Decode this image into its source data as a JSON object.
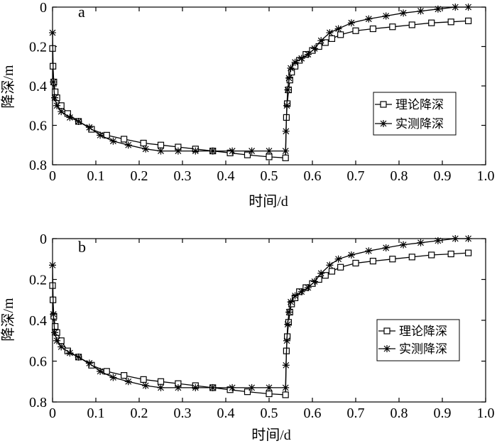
{
  "chart_data": [
    {
      "type": "line",
      "panel_label": "a",
      "xlabel": "时间/d",
      "ylabel": "降深/m",
      "xlim": [
        0,
        1.0
      ],
      "ylim": [
        0,
        0.8
      ],
      "y_inverted": true,
      "x_ticks": [
        "0",
        "0.1",
        "0.2",
        "0.3",
        "0.4",
        "0.5",
        "0.6",
        "0.7",
        "0.8",
        "0.9",
        "1.0"
      ],
      "y_ticks": [
        "0",
        "0.2",
        "0.4",
        "0.6",
        "0.8"
      ],
      "legend_position": "right-center",
      "grid": false,
      "series": [
        {
          "name": "理论降深",
          "marker": "square",
          "x": [
            0.0,
            0.001,
            0.003,
            0.006,
            0.01,
            0.02,
            0.035,
            0.06,
            0.09,
            0.125,
            0.165,
            0.21,
            0.25,
            0.29,
            0.33,
            0.37,
            0.41,
            0.45,
            0.5,
            0.538,
            0.54,
            0.542,
            0.545,
            0.548,
            0.552,
            0.56,
            0.57,
            0.585,
            0.6,
            0.615,
            0.63,
            0.645,
            0.665,
            0.7,
            0.74,
            0.785,
            0.83,
            0.875,
            0.92,
            0.96
          ],
          "y": [
            0.21,
            0.3,
            0.38,
            0.43,
            0.46,
            0.5,
            0.54,
            0.58,
            0.62,
            0.65,
            0.67,
            0.69,
            0.7,
            0.71,
            0.72,
            0.73,
            0.74,
            0.75,
            0.76,
            0.765,
            0.56,
            0.49,
            0.42,
            0.37,
            0.33,
            0.3,
            0.27,
            0.24,
            0.22,
            0.2,
            0.18,
            0.16,
            0.14,
            0.12,
            0.11,
            0.1,
            0.09,
            0.08,
            0.075,
            0.07
          ]
        },
        {
          "name": "实测降深",
          "marker": "star",
          "x": [
            0.0,
            0.002,
            0.005,
            0.01,
            0.02,
            0.04,
            0.06,
            0.085,
            0.11,
            0.14,
            0.175,
            0.215,
            0.25,
            0.29,
            0.33,
            0.37,
            0.415,
            0.46,
            0.5,
            0.538,
            0.539,
            0.541,
            0.543,
            0.546,
            0.55,
            0.56,
            0.575,
            0.59,
            0.605,
            0.62,
            0.64,
            0.66,
            0.69,
            0.73,
            0.77,
            0.81,
            0.85,
            0.89,
            0.93,
            0.96
          ],
          "y": [
            0.13,
            0.38,
            0.46,
            0.5,
            0.53,
            0.56,
            0.58,
            0.61,
            0.65,
            0.68,
            0.7,
            0.72,
            0.73,
            0.73,
            0.73,
            0.73,
            0.73,
            0.73,
            0.73,
            0.73,
            0.63,
            0.5,
            0.42,
            0.36,
            0.31,
            0.28,
            0.26,
            0.24,
            0.21,
            0.17,
            0.13,
            0.11,
            0.08,
            0.06,
            0.045,
            0.03,
            0.02,
            0.01,
            0.0,
            0.0
          ]
        }
      ]
    },
    {
      "type": "line",
      "panel_label": "b",
      "xlabel": "时间/d",
      "ylabel": "降深/m",
      "xlim": [
        0,
        1.0
      ],
      "ylim": [
        0,
        0.8
      ],
      "y_inverted": true,
      "x_ticks": [
        "0",
        "0.1",
        "0.2",
        "0.3",
        "0.4",
        "0.5",
        "0.6",
        "0.7",
        "0.8",
        "0.9",
        "1.0"
      ],
      "y_ticks": [
        "0",
        "0.2",
        "0.4",
        "0.6",
        "0.8"
      ],
      "legend_position": "right-center",
      "grid": false,
      "series": [
        {
          "name": "理论降深",
          "marker": "square",
          "x": [
            0.0,
            0.001,
            0.003,
            0.006,
            0.01,
            0.02,
            0.035,
            0.06,
            0.09,
            0.125,
            0.165,
            0.21,
            0.25,
            0.29,
            0.33,
            0.37,
            0.41,
            0.45,
            0.5,
            0.538,
            0.54,
            0.542,
            0.545,
            0.548,
            0.552,
            0.56,
            0.57,
            0.585,
            0.6,
            0.615,
            0.63,
            0.645,
            0.665,
            0.7,
            0.74,
            0.785,
            0.83,
            0.875,
            0.92,
            0.96
          ],
          "y": [
            0.23,
            0.3,
            0.38,
            0.43,
            0.46,
            0.5,
            0.55,
            0.58,
            0.62,
            0.65,
            0.67,
            0.69,
            0.7,
            0.71,
            0.72,
            0.73,
            0.74,
            0.75,
            0.76,
            0.765,
            0.55,
            0.48,
            0.41,
            0.36,
            0.32,
            0.29,
            0.26,
            0.24,
            0.22,
            0.2,
            0.18,
            0.16,
            0.14,
            0.12,
            0.11,
            0.1,
            0.09,
            0.08,
            0.075,
            0.07
          ]
        },
        {
          "name": "实测降深",
          "marker": "star",
          "x": [
            0.0,
            0.002,
            0.005,
            0.01,
            0.02,
            0.04,
            0.06,
            0.085,
            0.11,
            0.14,
            0.175,
            0.215,
            0.25,
            0.29,
            0.33,
            0.37,
            0.415,
            0.46,
            0.5,
            0.538,
            0.539,
            0.541,
            0.543,
            0.546,
            0.55,
            0.56,
            0.575,
            0.59,
            0.605,
            0.62,
            0.64,
            0.66,
            0.69,
            0.73,
            0.77,
            0.81,
            0.85,
            0.89,
            0.93,
            0.96
          ],
          "y": [
            0.13,
            0.37,
            0.46,
            0.5,
            0.53,
            0.56,
            0.58,
            0.61,
            0.65,
            0.68,
            0.7,
            0.72,
            0.73,
            0.73,
            0.73,
            0.73,
            0.73,
            0.73,
            0.73,
            0.73,
            0.62,
            0.5,
            0.42,
            0.36,
            0.31,
            0.28,
            0.26,
            0.24,
            0.21,
            0.17,
            0.13,
            0.1,
            0.08,
            0.06,
            0.045,
            0.03,
            0.02,
            0.01,
            0.0,
            0.0
          ]
        }
      ]
    }
  ]
}
